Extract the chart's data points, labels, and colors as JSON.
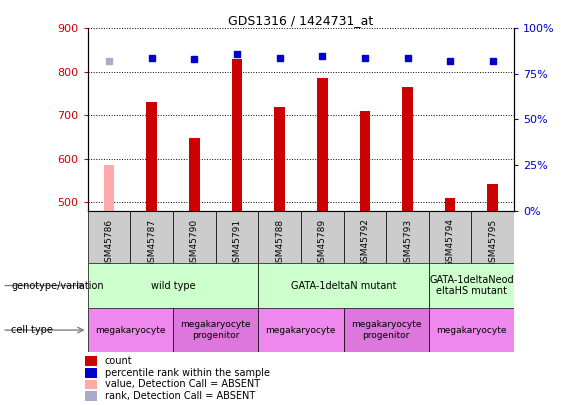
{
  "title": "GDS1316 / 1424731_at",
  "samples": [
    "GSM45786",
    "GSM45787",
    "GSM45790",
    "GSM45791",
    "GSM45788",
    "GSM45789",
    "GSM45792",
    "GSM45793",
    "GSM45794",
    "GSM45795"
  ],
  "count_values": [
    585,
    730,
    648,
    830,
    718,
    785,
    710,
    765,
    510,
    542
  ],
  "count_absent": [
    true,
    false,
    false,
    false,
    false,
    false,
    false,
    false,
    false,
    false
  ],
  "percentile_values": [
    82,
    84,
    83,
    86,
    84,
    85,
    84,
    84,
    82,
    82
  ],
  "percentile_absent": [
    true,
    false,
    false,
    false,
    false,
    false,
    false,
    false,
    false,
    false
  ],
  "ylim_left": [
    480,
    900
  ],
  "ylim_right": [
    0,
    100
  ],
  "right_ticks": [
    0,
    25,
    50,
    75,
    100
  ],
  "right_tick_labels": [
    "0%",
    "25%",
    "50%",
    "75%",
    "100%"
  ],
  "left_ticks": [
    500,
    600,
    700,
    800,
    900
  ],
  "color_red": "#cc0000",
  "color_pink": "#ffaaaa",
  "color_blue": "#0000cc",
  "color_lightblue": "#aaaacc",
  "color_green": "#ccffcc",
  "color_purple1": "#ee88ee",
  "color_purple2": "#cc66cc",
  "color_gray": "#cccccc",
  "bar_width": 0.25,
  "genotype_groups": [
    {
      "label": "wild type",
      "start": 0,
      "end": 4,
      "color": "#ccffcc"
    },
    {
      "label": "GATA-1deltaN mutant",
      "start": 4,
      "end": 8,
      "color": "#ccffcc"
    },
    {
      "label": "GATA-1deltaNeod\neltaHS mutant",
      "start": 8,
      "end": 10,
      "color": "#ccffcc"
    }
  ],
  "cell_type_groups": [
    {
      "label": "megakaryocyte",
      "start": 0,
      "end": 2,
      "color": "#ee88ee"
    },
    {
      "label": "megakaryocyte\nprogenitor",
      "start": 2,
      "end": 4,
      "color": "#dd77dd"
    },
    {
      "label": "megakaryocyte",
      "start": 4,
      "end": 6,
      "color": "#ee88ee"
    },
    {
      "label": "megakaryocyte\nprogenitor",
      "start": 6,
      "end": 8,
      "color": "#dd77dd"
    },
    {
      "label": "megakaryocyte",
      "start": 8,
      "end": 10,
      "color": "#ee88ee"
    }
  ],
  "legend_items": [
    {
      "label": "count",
      "color": "#cc0000"
    },
    {
      "label": "percentile rank within the sample",
      "color": "#0000cc"
    },
    {
      "label": "value, Detection Call = ABSENT",
      "color": "#ffaaaa"
    },
    {
      "label": "rank, Detection Call = ABSENT",
      "color": "#aaaacc"
    }
  ]
}
